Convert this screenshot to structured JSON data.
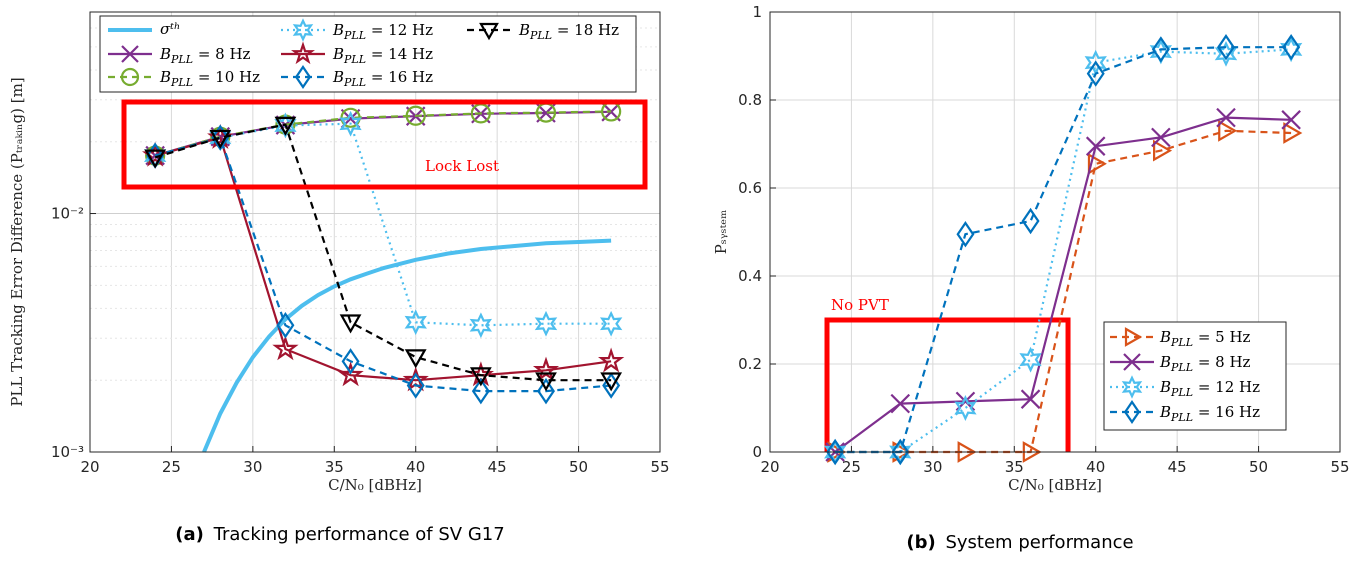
{
  "chart_data": [
    {
      "type": "line",
      "caption_tag": "(a)",
      "caption": "Tracking performance of SV G17",
      "xlabel": "C/N₀ [dBHz]",
      "ylabel": "PLL Tracking Error Difference (Pₜᵣₐₖᵢₙg) [m]",
      "ylabel_plain": "PLL Tracking Error Difference (P_Tracking) [m]",
      "xlim": [
        20,
        55
      ],
      "ylim": [
        0.001,
        0.07
      ],
      "yscale": "log",
      "xticks": [
        "20",
        "25",
        "30",
        "35",
        "40",
        "45",
        "50",
        "55"
      ],
      "yticks": [
        "10⁻³",
        "10⁻²"
      ],
      "grid": true,
      "legend_position": "top",
      "annotation": {
        "text": "Lock Lost",
        "color": "#ff0000"
      },
      "threshold": {
        "name": "σᵗʰ",
        "color": "#4dbeee",
        "x": [
          27,
          28,
          29,
          30,
          31,
          32,
          33,
          34,
          35,
          36,
          37,
          38,
          40,
          42,
          44,
          46,
          48,
          50,
          52
        ],
        "y": [
          0.001,
          0.00145,
          0.00195,
          0.0025,
          0.00305,
          0.0036,
          0.0041,
          0.00455,
          0.00495,
          0.0053,
          0.0056,
          0.0059,
          0.0064,
          0.0068,
          0.0071,
          0.0073,
          0.0075,
          0.0076,
          0.0077
        ]
      },
      "series": [
        {
          "name": "B_PLL = 8 Hz",
          "label_sub": "PLL",
          "label_val": " = 8 Hz",
          "color": "#7e2f8e",
          "marker": "x",
          "dash": "solid",
          "x": [
            24,
            28,
            32,
            36,
            40,
            44,
            48,
            52
          ],
          "y": [
            0.0175,
            0.021,
            0.0235,
            0.025,
            0.0256,
            0.0262,
            0.0264,
            0.0267
          ]
        },
        {
          "name": "B_PLL = 10 Hz",
          "label_sub": "PLL",
          "label_val": " = 10 Hz",
          "color": "#77ac30",
          "marker": "circle",
          "dash": "dash",
          "x": [
            24,
            28,
            32,
            36,
            40,
            44,
            48,
            52
          ],
          "y": [
            0.0175,
            0.021,
            0.0236,
            0.0252,
            0.0257,
            0.0263,
            0.0265,
            0.0268
          ]
        },
        {
          "name": "B_PLL = 12 Hz",
          "label_sub": "PLL",
          "label_val": " = 12 Hz",
          "color": "#4dbeee",
          "marker": "hexagram",
          "dash": "dot",
          "x": [
            24,
            28,
            32,
            36,
            40,
            44,
            48,
            52
          ],
          "y": [
            0.0175,
            0.0208,
            0.0234,
            0.0238,
            0.0035,
            0.0034,
            0.00345,
            0.00345
          ]
        },
        {
          "name": "B_PLL = 14 Hz",
          "label_sub": "PLL",
          "label_val": " = 14 Hz",
          "color": "#a2142f",
          "marker": "star",
          "dash": "solid",
          "x": [
            24,
            28,
            32,
            36,
            40,
            44,
            48,
            52
          ],
          "y": [
            0.0175,
            0.0208,
            0.0027,
            0.0021,
            0.002,
            0.0021,
            0.0022,
            0.0024
          ]
        },
        {
          "name": "B_PLL = 16 Hz",
          "label_sub": "PLL",
          "label_val": " = 16 Hz",
          "color": "#0072bd",
          "marker": "diamond",
          "dash": "dash",
          "x": [
            24,
            28,
            32,
            36,
            40,
            44,
            48,
            52
          ],
          "y": [
            0.0175,
            0.0208,
            0.0034,
            0.0024,
            0.0019,
            0.0018,
            0.0018,
            0.0019
          ]
        },
        {
          "name": "B_PLL = 18 Hz",
          "label_sub": "PLL",
          "label_val": " = 18 Hz",
          "color": "#000000",
          "marker": "triangle-down",
          "dash": "dash",
          "x": [
            24,
            28,
            32,
            36,
            40,
            44,
            48,
            52
          ],
          "y": [
            0.0172,
            0.0208,
            0.0236,
            0.0035,
            0.0025,
            0.0021,
            0.002,
            0.002
          ]
        }
      ]
    },
    {
      "type": "line",
      "caption_tag": "(b)",
      "caption": "System performance",
      "xlabel": "C/N₀ [dBHz]",
      "ylabel": "Pₛᵧₛₜₑₘ",
      "ylabel_plain": "P_System",
      "xlim": [
        20,
        55
      ],
      "ylim": [
        0,
        1
      ],
      "yscale": "linear",
      "xticks": [
        "20",
        "25",
        "30",
        "35",
        "40",
        "45",
        "50",
        "55"
      ],
      "yticks": [
        "0",
        "0.2",
        "0.4",
        "0.6",
        "0.8",
        "1"
      ],
      "grid": true,
      "legend_position": "right",
      "annotation": {
        "text": "No PVT",
        "color": "#ff0000"
      },
      "series": [
        {
          "name": "B_PLL = 5 Hz",
          "label_sub": "PLL",
          "label_val": " = 5 Hz",
          "color": "#d95319",
          "marker": "triangle-right",
          "dash": "dash",
          "x": [
            24,
            28,
            32,
            36,
            40,
            44,
            48,
            52
          ],
          "y": [
            0,
            0,
            0,
            0,
            0.655,
            0.685,
            0.73,
            0.725
          ]
        },
        {
          "name": "B_PLL = 8 Hz",
          "label_sub": "PLL",
          "label_val": " = 8 Hz",
          "color": "#7e2f8e",
          "marker": "x",
          "dash": "solid",
          "x": [
            24,
            28,
            32,
            36,
            40,
            44,
            48,
            52
          ],
          "y": [
            0,
            0.11,
            0.115,
            0.12,
            0.695,
            0.715,
            0.76,
            0.755
          ]
        },
        {
          "name": "B_PLL = 12 Hz",
          "label_sub": "PLL",
          "label_val": " = 12 Hz",
          "color": "#4dbeee",
          "marker": "hexagram",
          "dash": "dot",
          "x": [
            24,
            28,
            32,
            36,
            40,
            44,
            48,
            52
          ],
          "y": [
            0,
            0,
            0.1,
            0.21,
            0.885,
            0.91,
            0.905,
            0.915
          ]
        },
        {
          "name": "B_PLL = 16 Hz",
          "label_sub": "PLL",
          "label_val": " = 16 Hz",
          "color": "#0072bd",
          "marker": "diamond",
          "dash": "dash",
          "x": [
            24,
            28,
            32,
            36,
            40,
            44,
            48,
            52
          ],
          "y": [
            0,
            0,
            0.495,
            0.525,
            0.86,
            0.915,
            0.92,
            0.92
          ]
        }
      ]
    }
  ]
}
